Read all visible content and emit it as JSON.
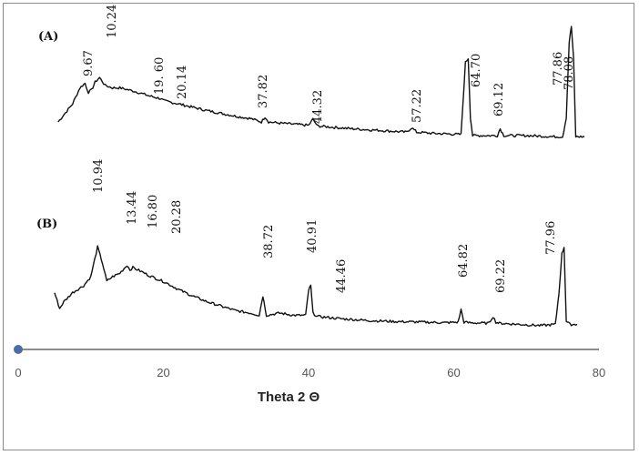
{
  "chart_data": {
    "type": "line",
    "xlabel": "Theta 2 Θ",
    "ylabel": "",
    "xlim": [
      0,
      80
    ],
    "xticks": [
      0,
      20,
      40,
      60,
      80
    ],
    "grid": false,
    "series": [
      {
        "name": "(A)",
        "x": [
          5.5,
          6.5,
          7.5,
          8.5,
          9.2,
          9.67,
          10.1,
          10.6,
          11.2,
          12.0,
          13.0,
          14.0,
          15.0,
          16.0,
          17.0,
          18.0,
          19.6,
          20.14,
          22.0,
          24.0,
          26.0,
          28.0,
          30.0,
          32.0,
          33.5,
          34.0,
          34.5,
          36.0,
          38.0,
          40.0,
          40.6,
          41.2,
          43.0,
          46.0,
          50.0,
          53.5,
          54.2,
          54.9,
          57.0,
          59.0,
          61.0,
          61.6,
          62.0,
          62.3,
          62.6,
          63.0,
          65.0,
          66.0,
          66.4,
          66.9,
          70.0,
          74.0,
          75.0,
          75.5,
          75.9,
          76.2,
          76.5,
          76.8,
          77.3,
          78.0
        ],
        "y": [
          0.16,
          0.24,
          0.32,
          0.46,
          0.5,
          0.42,
          0.44,
          0.51,
          0.55,
          0.48,
          0.46,
          0.46,
          0.445,
          0.43,
          0.41,
          0.39,
          0.365,
          0.345,
          0.32,
          0.29,
          0.26,
          0.235,
          0.21,
          0.19,
          0.16,
          0.205,
          0.16,
          0.15,
          0.14,
          0.13,
          0.185,
          0.125,
          0.115,
          0.1,
          0.085,
          0.07,
          0.11,
          0.07,
          0.06,
          0.055,
          0.05,
          0.68,
          0.72,
          0.2,
          0.04,
          0.04,
          0.04,
          0.04,
          0.1,
          0.04,
          0.04,
          0.03,
          0.03,
          0.2,
          0.86,
          1.0,
          0.72,
          0.03,
          0.03,
          0.03
        ]
      },
      {
        "name": "(B)",
        "x": [
          5.0,
          5.7,
          6.3,
          7.5,
          9.0,
          10.0,
          10.94,
          11.6,
          12.2,
          13.0,
          14.0,
          15.0,
          15.4,
          15.8,
          16.8,
          18.0,
          20.28,
          22.0,
          24.0,
          26.0,
          28.0,
          30.0,
          32.0,
          33.2,
          33.7,
          34.2,
          36.0,
          38.0,
          39.6,
          40.0,
          40.3,
          40.6,
          41.2,
          44.46,
          48.0,
          52.0,
          56.0,
          59.0,
          60.6,
          61.0,
          61.4,
          62.0,
          64.82,
          65.4,
          65.8,
          66.3,
          69.22,
          72.0,
          74.0,
          74.5,
          74.9,
          75.2,
          75.5,
          76.0,
          77.0
        ],
        "y": [
          0.3,
          0.16,
          0.22,
          0.3,
          0.36,
          0.44,
          0.7,
          0.56,
          0.4,
          0.44,
          0.47,
          0.54,
          0.5,
          0.52,
          0.49,
          0.45,
          0.39,
          0.33,
          0.27,
          0.22,
          0.18,
          0.14,
          0.12,
          0.1,
          0.27,
          0.1,
          0.12,
          0.1,
          0.1,
          0.32,
          0.36,
          0.12,
          0.09,
          0.07,
          0.055,
          0.045,
          0.04,
          0.035,
          0.04,
          0.15,
          0.04,
          0.035,
          0.03,
          0.09,
          0.04,
          0.03,
          0.02,
          0.01,
          0.02,
          0.3,
          0.64,
          0.7,
          0.05,
          0.02,
          0.02
        ]
      }
    ],
    "peak_labels": [
      {
        "series": 0,
        "text": "9.67",
        "x": 9.67
      },
      {
        "series": 0,
        "text": "10.24",
        "x": 10.24
      },
      {
        "series": 0,
        "text": "19. 60",
        "x": 19.6
      },
      {
        "series": 0,
        "text": "20.14",
        "x": 20.14
      },
      {
        "series": 0,
        "text": "37.82",
        "x": 37.82
      },
      {
        "series": 0,
        "text": "44.32",
        "x": 44.32
      },
      {
        "series": 0,
        "text": "57.22",
        "x": 57.22
      },
      {
        "series": 0,
        "text": "64.70",
        "x": 64.7
      },
      {
        "series": 0,
        "text": "69.12",
        "x": 69.12
      },
      {
        "series": 0,
        "text": "77.86",
        "x": 77.86
      },
      {
        "series": 0,
        "text": "78.08",
        "x": 78.08
      },
      {
        "series": 1,
        "text": "10.94",
        "x": 10.94
      },
      {
        "series": 1,
        "text": "13.44",
        "x": 13.44
      },
      {
        "series": 1,
        "text": "16.80",
        "x": 16.8
      },
      {
        "series": 1,
        "text": "20.28",
        "x": 20.28
      },
      {
        "series": 1,
        "text": "38.72",
        "x": 38.72
      },
      {
        "series": 1,
        "text": "40.91",
        "x": 40.91
      },
      {
        "series": 1,
        "text": "44.46",
        "x": 44.46
      },
      {
        "series": 1,
        "text": "64.82",
        "x": 64.82
      },
      {
        "series": 1,
        "text": "69.22",
        "x": 69.22
      },
      {
        "series": 1,
        "text": "77.96",
        "x": 77.96
      }
    ],
    "colors": {
      "trace": "#111111",
      "axis": "#8c8c8c",
      "origin_marker": "#4a6fa5"
    }
  }
}
